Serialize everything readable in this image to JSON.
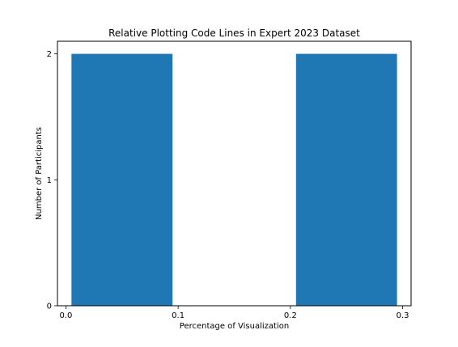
{
  "chart_data": {
    "type": "bar",
    "title": "Relative Plotting Code Lines in Expert 2023 Dataset",
    "xlabel": "Percentage of Visualization",
    "ylabel": "Number of Participants",
    "bins": [
      {
        "start": 0.005,
        "end": 0.095,
        "count": 2
      },
      {
        "start": 0.095,
        "end": 0.205,
        "count": 0
      },
      {
        "start": 0.205,
        "end": 0.295,
        "count": 2
      }
    ],
    "xlim": [
      -0.0075,
      0.3075
    ],
    "ylim": [
      0,
      2.1
    ],
    "xticks": [
      {
        "value": 0.0,
        "label": "0.0"
      },
      {
        "value": 0.1,
        "label": "0.1"
      },
      {
        "value": 0.2,
        "label": "0.2"
      },
      {
        "value": 0.3,
        "label": "0.3"
      }
    ],
    "yticks": [
      {
        "value": 0,
        "label": "0"
      },
      {
        "value": 1,
        "label": "1"
      },
      {
        "value": 2,
        "label": "2"
      }
    ],
    "bar_color": "#1f77b4",
    "grid": false,
    "legend": "none"
  }
}
